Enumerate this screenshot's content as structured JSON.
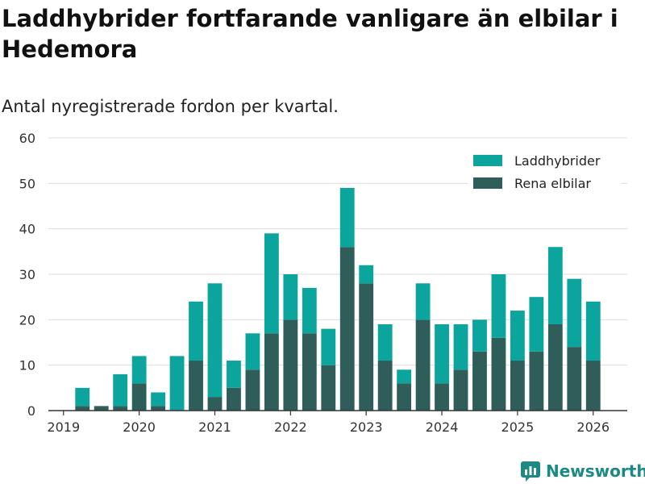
{
  "title": "Laddhybrider fortfarande vanligare än elbilar i Hedemora",
  "subtitle": "Antal nyregistrerade fordon per kvartal.",
  "brand": "Newsworthy",
  "colors": {
    "hybrid": "#0ba59e",
    "electric": "#2f5d5a",
    "grid": "#dddddd",
    "axis": "#333333",
    "brand": "#1a8a83"
  },
  "chart_data": {
    "type": "bar",
    "stacked": true,
    "title": "Laddhybrider fortfarande vanligare än elbilar i Hedemora",
    "subtitle": "Antal nyregistrerade fordon per kvartal.",
    "xlabel": "",
    "ylabel": "",
    "ylim": [
      0,
      60
    ],
    "yticks": [
      0,
      10,
      20,
      30,
      40,
      50,
      60
    ],
    "xticks": [
      {
        "label": "2019",
        "x": 2019.0
      },
      {
        "label": "2020",
        "x": 2020.0
      },
      {
        "label": "2021",
        "x": 2021.0
      },
      {
        "label": "2022",
        "x": 2022.0
      },
      {
        "label": "2023",
        "x": 2023.0
      },
      {
        "label": "2024",
        "x": 2024.0
      },
      {
        "label": "2025",
        "x": 2025.0
      },
      {
        "label": "2026",
        "x": 2026.0
      }
    ],
    "xlim": [
      2018.8,
      2026.45
    ],
    "legend_position": "top-right",
    "categories": [
      "2019 Q2",
      "2019 Q3",
      "2019 Q4",
      "2020 Q1",
      "2020 Q2",
      "2020 Q3",
      "2020 Q4",
      "2021 Q1",
      "2021 Q2",
      "2021 Q3",
      "2021 Q4",
      "2022 Q1",
      "2022 Q2",
      "2022 Q3",
      "2022 Q4",
      "2023 Q1",
      "2023 Q2",
      "2023 Q3",
      "2023 Q4",
      "2024 Q1",
      "2024 Q2",
      "2024 Q3",
      "2024 Q4",
      "2025 Q1",
      "2025 Q2",
      "2025 Q3",
      "2025 Q4",
      "2026 Q1"
    ],
    "x": [
      2019.25,
      2019.5,
      2019.75,
      2020.0,
      2020.25,
      2020.5,
      2020.75,
      2021.0,
      2021.25,
      2021.5,
      2021.75,
      2022.0,
      2022.25,
      2022.5,
      2022.75,
      2023.0,
      2023.25,
      2023.5,
      2023.75,
      2024.0,
      2024.25,
      2024.5,
      2024.75,
      2025.0,
      2025.25,
      2025.5,
      2025.75,
      2026.0
    ],
    "series": [
      {
        "name": "Rena elbilar",
        "values": [
          1,
          1,
          1,
          6,
          1,
          0,
          11,
          3,
          5,
          9,
          17,
          20,
          17,
          10,
          36,
          28,
          11,
          6,
          20,
          6,
          9,
          13,
          16,
          11,
          13,
          19,
          14,
          11
        ]
      },
      {
        "name": "Laddhybrider",
        "values": [
          4,
          0,
          7,
          6,
          3,
          12,
          13,
          25,
          6,
          8,
          22,
          10,
          10,
          8,
          13,
          4,
          8,
          3,
          8,
          13,
          10,
          7,
          14,
          11,
          12,
          17,
          15,
          13
        ]
      }
    ]
  }
}
